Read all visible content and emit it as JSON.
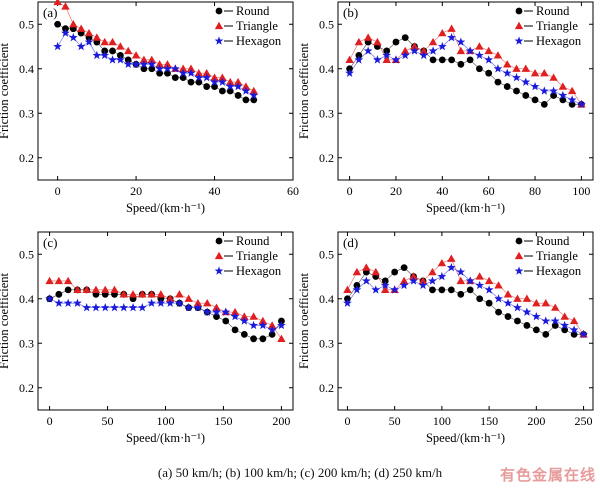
{
  "caption": "(a) 50 km/h; (b) 100 km/h; (c) 200  km/h; (d) 250 km/h",
  "watermark": "有色金属在线",
  "colors": {
    "round": "#000000",
    "triangle": "#e02020",
    "hexagon": "#1a1adb",
    "axis": "#000000"
  },
  "chart_data": [
    {
      "panel_label": "(a)",
      "type": "scatter",
      "xlabel": "Speed/(km·h⁻¹)",
      "ylabel": "Friction coefficient",
      "xlim": [
        -5,
        60
      ],
      "ylim": [
        0.15,
        0.55
      ],
      "xticks": [
        0,
        20,
        40,
        60
      ],
      "yticks": [
        0.2,
        0.3,
        0.4,
        0.5
      ],
      "legend": "top-right",
      "series": [
        {
          "name": "Round",
          "marker": "circle",
          "x": [
            0,
            2,
            4,
            6,
            8,
            10,
            12,
            14,
            16,
            18,
            20,
            22,
            24,
            26,
            28,
            30,
            32,
            34,
            36,
            38,
            40,
            42,
            44,
            46,
            48,
            50
          ],
          "y": [
            0.5,
            0.49,
            0.49,
            0.48,
            0.47,
            0.46,
            0.44,
            0.44,
            0.43,
            0.42,
            0.41,
            0.4,
            0.4,
            0.39,
            0.39,
            0.38,
            0.38,
            0.37,
            0.37,
            0.36,
            0.36,
            0.35,
            0.35,
            0.34,
            0.33,
            0.33
          ]
        },
        {
          "name": "Triangle",
          "marker": "triangle",
          "x": [
            0,
            2,
            4,
            6,
            8,
            10,
            12,
            14,
            16,
            18,
            20,
            22,
            24,
            26,
            28,
            30,
            32,
            34,
            36,
            38,
            40,
            42,
            44,
            46,
            48,
            50
          ],
          "y": [
            0.55,
            0.54,
            0.5,
            0.49,
            0.48,
            0.47,
            0.46,
            0.46,
            0.45,
            0.44,
            0.43,
            0.42,
            0.42,
            0.41,
            0.41,
            0.4,
            0.4,
            0.4,
            0.39,
            0.39,
            0.38,
            0.38,
            0.37,
            0.37,
            0.36,
            0.35
          ]
        },
        {
          "name": "Hexagon",
          "marker": "star",
          "x": [
            0,
            2,
            4,
            6,
            8,
            10,
            12,
            14,
            16,
            18,
            20,
            22,
            24,
            26,
            28,
            30,
            32,
            34,
            36,
            38,
            40,
            42,
            44,
            46,
            48,
            50
          ],
          "y": [
            0.45,
            0.48,
            0.47,
            0.45,
            0.46,
            0.43,
            0.43,
            0.42,
            0.42,
            0.41,
            0.41,
            0.41,
            0.41,
            0.4,
            0.4,
            0.4,
            0.39,
            0.39,
            0.38,
            0.38,
            0.37,
            0.37,
            0.36,
            0.36,
            0.35,
            0.34
          ]
        }
      ]
    },
    {
      "panel_label": "(b)",
      "type": "line",
      "xlabel": "Speed/(km·h⁻¹)",
      "ylabel": "Friction coefficient",
      "xlim": [
        -5,
        105
      ],
      "ylim": [
        0.15,
        0.55
      ],
      "xticks": [
        0,
        20,
        40,
        60,
        80,
        100
      ],
      "yticks": [
        0.2,
        0.3,
        0.4,
        0.5
      ],
      "legend": "top-right",
      "series": [
        {
          "name": "Round",
          "marker": "circle",
          "x": [
            0,
            4,
            8,
            12,
            16,
            20,
            24,
            28,
            32,
            36,
            40,
            44,
            48,
            52,
            56,
            60,
            64,
            68,
            72,
            76,
            80,
            84,
            88,
            92,
            96,
            100
          ],
          "y": [
            0.4,
            0.43,
            0.46,
            0.45,
            0.44,
            0.46,
            0.47,
            0.45,
            0.44,
            0.42,
            0.42,
            0.42,
            0.41,
            0.42,
            0.4,
            0.39,
            0.37,
            0.36,
            0.35,
            0.34,
            0.33,
            0.32,
            0.34,
            0.33,
            0.32,
            0.32
          ]
        },
        {
          "name": "Triangle",
          "marker": "triangle",
          "x": [
            0,
            4,
            8,
            12,
            16,
            20,
            24,
            28,
            32,
            36,
            40,
            44,
            48,
            52,
            56,
            60,
            64,
            68,
            72,
            76,
            80,
            84,
            88,
            92,
            96,
            100
          ],
          "y": [
            0.42,
            0.46,
            0.47,
            0.46,
            0.42,
            0.42,
            0.44,
            0.45,
            0.44,
            0.46,
            0.48,
            0.49,
            0.44,
            0.44,
            0.45,
            0.44,
            0.43,
            0.41,
            0.4,
            0.4,
            0.39,
            0.39,
            0.38,
            0.36,
            0.35,
            0.32
          ]
        },
        {
          "name": "Hexagon",
          "marker": "star",
          "x": [
            0,
            4,
            8,
            12,
            16,
            20,
            24,
            28,
            32,
            36,
            40,
            44,
            48,
            52,
            56,
            60,
            64,
            68,
            72,
            76,
            80,
            84,
            88,
            92,
            96,
            100
          ],
          "y": [
            0.39,
            0.42,
            0.44,
            0.42,
            0.43,
            0.42,
            0.43,
            0.44,
            0.43,
            0.44,
            0.45,
            0.47,
            0.46,
            0.44,
            0.43,
            0.42,
            0.4,
            0.39,
            0.38,
            0.37,
            0.36,
            0.35,
            0.35,
            0.34,
            0.33,
            0.32
          ]
        }
      ]
    },
    {
      "panel_label": "(c)",
      "type": "line",
      "xlabel": "Speed/(km·h⁻¹)",
      "ylabel": "Friction coefficient",
      "xlim": [
        -10,
        210
      ],
      "ylim": [
        0.15,
        0.55
      ],
      "xticks": [
        0,
        50,
        100,
        150,
        200
      ],
      "yticks": [
        0.2,
        0.3,
        0.4,
        0.5
      ],
      "legend": "top-right",
      "series": [
        {
          "name": "Round",
          "marker": "circle",
          "x": [
            0,
            8,
            16,
            24,
            32,
            40,
            48,
            56,
            64,
            72,
            80,
            88,
            96,
            104,
            112,
            120,
            128,
            136,
            144,
            152,
            160,
            168,
            176,
            184,
            192,
            200
          ],
          "y": [
            0.4,
            0.41,
            0.42,
            0.42,
            0.42,
            0.41,
            0.41,
            0.41,
            0.41,
            0.4,
            0.41,
            0.41,
            0.4,
            0.4,
            0.39,
            0.38,
            0.38,
            0.37,
            0.36,
            0.35,
            0.33,
            0.32,
            0.31,
            0.31,
            0.32,
            0.35
          ]
        },
        {
          "name": "Triangle",
          "marker": "triangle",
          "x": [
            0,
            8,
            16,
            24,
            32,
            40,
            48,
            56,
            64,
            72,
            80,
            88,
            96,
            104,
            112,
            120,
            128,
            136,
            144,
            152,
            160,
            168,
            176,
            184,
            192,
            200
          ],
          "y": [
            0.44,
            0.44,
            0.44,
            0.42,
            0.42,
            0.42,
            0.42,
            0.42,
            0.41,
            0.41,
            0.41,
            0.41,
            0.41,
            0.4,
            0.41,
            0.4,
            0.39,
            0.39,
            0.38,
            0.37,
            0.37,
            0.36,
            0.36,
            0.35,
            0.34,
            0.31
          ]
        },
        {
          "name": "Hexagon",
          "marker": "star",
          "x": [
            0,
            8,
            16,
            24,
            32,
            40,
            48,
            56,
            64,
            72,
            80,
            88,
            96,
            104,
            112,
            120,
            128,
            136,
            144,
            152,
            160,
            168,
            176,
            184,
            192,
            200
          ],
          "y": [
            0.4,
            0.39,
            0.39,
            0.39,
            0.38,
            0.38,
            0.38,
            0.38,
            0.38,
            0.38,
            0.38,
            0.39,
            0.39,
            0.39,
            0.39,
            0.38,
            0.38,
            0.37,
            0.37,
            0.37,
            0.36,
            0.35,
            0.34,
            0.34,
            0.33,
            0.34
          ]
        }
      ]
    },
    {
      "panel_label": "(d)",
      "type": "line",
      "xlabel": "Speed/(km·h⁻¹)",
      "ylabel": "Friction coefficient",
      "xlim": [
        -10,
        260
      ],
      "ylim": [
        0.15,
        0.55
      ],
      "xticks": [
        0,
        50,
        100,
        150,
        200,
        250
      ],
      "yticks": [
        0.2,
        0.3,
        0.4,
        0.5
      ],
      "legend": "top-right",
      "series": [
        {
          "name": "Round",
          "marker": "circle",
          "x": [
            0,
            10,
            20,
            30,
            40,
            50,
            60,
            70,
            80,
            90,
            100,
            110,
            120,
            130,
            140,
            150,
            160,
            170,
            180,
            190,
            200,
            210,
            220,
            230,
            240,
            250
          ],
          "y": [
            0.4,
            0.43,
            0.46,
            0.45,
            0.44,
            0.46,
            0.47,
            0.45,
            0.44,
            0.42,
            0.42,
            0.42,
            0.41,
            0.42,
            0.4,
            0.39,
            0.37,
            0.36,
            0.35,
            0.34,
            0.33,
            0.32,
            0.34,
            0.33,
            0.32,
            0.32
          ]
        },
        {
          "name": "Triangle",
          "marker": "triangle",
          "x": [
            0,
            10,
            20,
            30,
            40,
            50,
            60,
            70,
            80,
            90,
            100,
            110,
            120,
            130,
            140,
            150,
            160,
            170,
            180,
            190,
            200,
            210,
            220,
            230,
            240,
            250
          ],
          "y": [
            0.42,
            0.46,
            0.47,
            0.46,
            0.42,
            0.42,
            0.44,
            0.45,
            0.44,
            0.46,
            0.48,
            0.49,
            0.44,
            0.44,
            0.45,
            0.44,
            0.43,
            0.41,
            0.4,
            0.4,
            0.39,
            0.39,
            0.38,
            0.36,
            0.35,
            0.32
          ]
        },
        {
          "name": "Hexagon",
          "marker": "star",
          "x": [
            0,
            10,
            20,
            30,
            40,
            50,
            60,
            70,
            80,
            90,
            100,
            110,
            120,
            130,
            140,
            150,
            160,
            170,
            180,
            190,
            200,
            210,
            220,
            230,
            240,
            250
          ],
          "y": [
            0.39,
            0.42,
            0.44,
            0.42,
            0.43,
            0.42,
            0.43,
            0.44,
            0.43,
            0.44,
            0.45,
            0.47,
            0.46,
            0.44,
            0.43,
            0.42,
            0.4,
            0.39,
            0.38,
            0.37,
            0.36,
            0.35,
            0.35,
            0.34,
            0.33,
            0.32
          ]
        }
      ]
    }
  ]
}
